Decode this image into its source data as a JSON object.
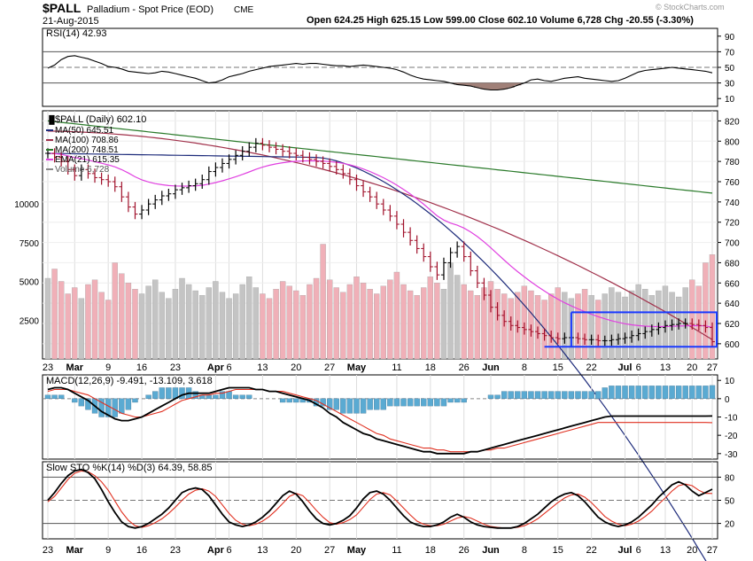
{
  "header": {
    "symbol": "$PALL",
    "name": "Palladium - Spot Price (EOD)",
    "exchange": "CME",
    "date": "21-Aug-2015",
    "quote": "Open 624.25  High 625.15  Low 599.00  Close 602.10  Volume 6,728  Chg -20.55 (-3.30%)",
    "watermark": "© StockCharts.com"
  },
  "colors": {
    "ma50": "#1c2a7a",
    "ma100": "#a0304a",
    "ma200": "#2a7a2a",
    "ema21": "#e040e0",
    "up_bar": "#000000",
    "down_bar": "#a0102a",
    "vol_up": "#c4c4c4",
    "vol_down": "#f0b0b8",
    "rsi_fill": "#a08078",
    "macd_hist": "#5aaad2",
    "support_line": "#1a3aff"
  },
  "chart_data": [
    {
      "type": "line",
      "title": "RSI(14) 42.93",
      "series": [
        {
          "name": "RSI(14)",
          "values": [
            49,
            53,
            60,
            64,
            65,
            63,
            61,
            58,
            55,
            51,
            50,
            48,
            45,
            44,
            43,
            42,
            43,
            45,
            44,
            42,
            40,
            38,
            36,
            33,
            30,
            31,
            34,
            38,
            40,
            42,
            45,
            47,
            49,
            51,
            52,
            53,
            54,
            55,
            54,
            55,
            55,
            54,
            53,
            52,
            52,
            51,
            52,
            53,
            52,
            51,
            50,
            49,
            47,
            44,
            40,
            37,
            35,
            34,
            33,
            32,
            30,
            28,
            27,
            26,
            24,
            22,
            21,
            21,
            22,
            24,
            27,
            30,
            34,
            35,
            33,
            32,
            34,
            36,
            37,
            38,
            36,
            35,
            34,
            33,
            32,
            33,
            36,
            40,
            44,
            46,
            47,
            48,
            49,
            50,
            49,
            48,
            47,
            46,
            45,
            43
          ]
        }
      ],
      "y_ticks": [
        "90",
        "70",
        "50",
        "30",
        "10"
      ],
      "y_tick_values": [
        90,
        70,
        50,
        30,
        10
      ],
      "ylim": [
        0,
        100
      ],
      "overbought": 70,
      "oversold": 30
    },
    {
      "type": "line",
      "title": "$PALL (Daily) 602.10",
      "legend": [
        {
          "label": "MA(50) 645.51",
          "key": "ma50"
        },
        {
          "label": "MA(100) 708.86",
          "key": "ma100"
        },
        {
          "label": "MA(200) 748.51",
          "key": "ma200"
        },
        {
          "label": "EMA(21) 615.35",
          "key": "ema21"
        },
        {
          "label": "Volume 6,728",
          "key": "volume"
        }
      ],
      "y_ticks": [
        "820",
        "800",
        "780",
        "760",
        "740",
        "720",
        "700",
        "680",
        "660",
        "640",
        "620",
        "600"
      ],
      "y_tick_values": [
        820,
        800,
        780,
        760,
        740,
        720,
        700,
        680,
        660,
        640,
        620,
        600
      ],
      "ylim": [
        585,
        830
      ],
      "vol_ticks": [
        "10000",
        "7500",
        "5000",
        "2500"
      ],
      "vol_tick_values": [
        10000,
        7500,
        5000,
        2500
      ],
      "vol_max": 16000,
      "close": [
        788,
        784,
        780,
        772,
        766,
        772,
        768,
        764,
        762,
        760,
        755,
        745,
        735,
        728,
        732,
        738,
        742,
        746,
        748,
        752,
        754,
        756,
        758,
        762,
        770,
        774,
        778,
        782,
        786,
        790,
        794,
        798,
        796,
        794,
        792,
        790,
        788,
        786,
        784,
        782,
        780,
        778,
        775,
        772,
        768,
        762,
        756,
        750,
        745,
        738,
        732,
        726,
        718,
        710,
        702,
        694,
        686,
        676,
        668,
        680,
        690,
        696,
        686,
        672,
        660,
        648,
        636,
        628,
        622,
        618,
        616,
        614,
        612,
        610,
        608,
        606,
        605,
        606,
        606,
        605,
        604,
        604,
        603,
        603,
        604,
        605,
        606,
        608,
        610,
        612,
        614,
        616,
        618,
        619,
        620,
        620,
        619,
        618,
        616,
        602
      ],
      "volume": [
        5200,
        5800,
        5000,
        4200,
        4600,
        3900,
        4800,
        5100,
        4300,
        3800,
        6200,
        5500,
        4900,
        4500,
        4200,
        4700,
        5100,
        4300,
        3900,
        4500,
        5200,
        4800,
        4400,
        4100,
        4600,
        5000,
        4300,
        3900,
        4200,
        4800,
        5300,
        4600,
        4200,
        3900,
        4500,
        5000,
        4700,
        4400,
        4100,
        4800,
        5200,
        7400,
        5100,
        4600,
        4300,
        4800,
        5300,
        4900,
        4500,
        4200,
        4700,
        5100,
        5600,
        4800,
        4400,
        4100,
        4600,
        5300,
        4900,
        4500,
        6200,
        5400,
        4800,
        4400,
        4100,
        4600,
        5000,
        4500,
        4200,
        3900,
        4300,
        4700,
        4400,
        4100,
        3800,
        4200,
        4600,
        4300,
        3900,
        4200,
        4500,
        4100,
        3800,
        4200,
        4600,
        4300,
        4000,
        4400,
        4800,
        4500,
        4100,
        4400,
        4700,
        4300,
        4000,
        4600,
        5100,
        4700,
        6200,
        6728
      ],
      "support_line": 597,
      "resistance_line": 631
    },
    {
      "type": "line",
      "title": "MACD(12,26,9) -9.491, -13.109, 3.618",
      "series": [
        {
          "name": "MACD",
          "values": [
            5,
            6,
            6,
            5,
            3,
            1,
            -1,
            -4,
            -7,
            -9,
            -11,
            -12,
            -12,
            -11,
            -10,
            -8,
            -6,
            -4,
            -2,
            0,
            2,
            3,
            3,
            3,
            3,
            4,
            5,
            6,
            6,
            6,
            6,
            5,
            5,
            4,
            4,
            3,
            2,
            1,
            0,
            -1,
            -3,
            -5,
            -8,
            -10,
            -13,
            -15,
            -17,
            -19,
            -20,
            -22,
            -23,
            -24,
            -25,
            -26,
            -27,
            -28,
            -29,
            -29,
            -30,
            -30,
            -30,
            -30,
            -30,
            -29,
            -29,
            -28,
            -27,
            -26,
            -25,
            -24,
            -23,
            -22,
            -21,
            -20,
            -19,
            -18,
            -17,
            -16,
            -15,
            -14,
            -13,
            -12,
            -11,
            -10,
            -9.5,
            -9.5,
            -9.5,
            -9.5,
            -9.5,
            -9.5,
            -9.5,
            -9.5,
            -9.5,
            -9.5,
            -9.5,
            -9.5,
            -9.5,
            -9.5,
            -9.5,
            -9.491
          ]
        },
        {
          "name": "Signal",
          "values": [
            4,
            5,
            5,
            5,
            4,
            3,
            2,
            0,
            -2,
            -4,
            -6,
            -8,
            -9,
            -10,
            -10,
            -9,
            -8,
            -7,
            -5,
            -3,
            -1,
            0,
            1,
            2,
            2,
            3,
            3,
            4,
            5,
            5,
            5,
            5,
            5,
            4,
            4,
            4,
            3,
            2,
            1,
            0,
            -1,
            -3,
            -5,
            -7,
            -9,
            -11,
            -13,
            -15,
            -17,
            -19,
            -20,
            -22,
            -23,
            -24,
            -25,
            -26,
            -27,
            -27,
            -28,
            -28,
            -29,
            -29,
            -29,
            -29,
            -29,
            -28,
            -28,
            -27,
            -27,
            -26,
            -25,
            -24,
            -23,
            -22,
            -21,
            -20,
            -19,
            -18,
            -17,
            -16,
            -15,
            -14,
            -13,
            -13,
            -13,
            -13,
            -13,
            -13,
            -13,
            -13,
            -13,
            -13,
            -13,
            -13,
            -13,
            -13,
            -13,
            -13,
            -13,
            -13.109
          ]
        }
      ],
      "y_ticks": [
        "10",
        "0",
        "-10",
        "-20",
        "-30"
      ],
      "y_tick_values": [
        10,
        0,
        -10,
        -20,
        -30
      ],
      "ylim": [
        -33,
        13
      ]
    },
    {
      "type": "line",
      "title": "Slow STO %K(14) %D(3) 64.39, 58.85",
      "series": [
        {
          "name": "%K(14)",
          "values": [
            50,
            60,
            72,
            82,
            88,
            90,
            86,
            78,
            64,
            48,
            34,
            22,
            16,
            14,
            16,
            20,
            26,
            32,
            40,
            50,
            60,
            64,
            66,
            64,
            56,
            44,
            32,
            22,
            18,
            16,
            18,
            22,
            28,
            36,
            46,
            56,
            62,
            58,
            48,
            36,
            26,
            20,
            18,
            20,
            24,
            30,
            40,
            52,
            60,
            62,
            58,
            50,
            40,
            30,
            22,
            18,
            16,
            16,
            18,
            22,
            28,
            32,
            28,
            22,
            18,
            16,
            15,
            14,
            14,
            14,
            16,
            20,
            26,
            32,
            40,
            48,
            54,
            58,
            60,
            56,
            48,
            38,
            28,
            22,
            18,
            16,
            18,
            22,
            28,
            36,
            44,
            54,
            62,
            70,
            74,
            70,
            62,
            56,
            60,
            64.39
          ]
        },
        {
          "name": "%D(3)",
          "values": [
            48,
            55,
            66,
            77,
            85,
            88,
            87,
            82,
            74,
            63,
            49,
            35,
            24,
            17,
            15,
            17,
            21,
            26,
            33,
            41,
            50,
            58,
            63,
            65,
            62,
            55,
            44,
            33,
            24,
            19,
            17,
            19,
            23,
            29,
            37,
            46,
            55,
            59,
            56,
            47,
            37,
            28,
            21,
            19,
            21,
            25,
            31,
            41,
            51,
            58,
            60,
            57,
            49,
            40,
            31,
            23,
            19,
            17,
            17,
            19,
            23,
            27,
            29,
            27,
            23,
            19,
            16,
            15,
            14,
            14,
            15,
            17,
            21,
            26,
            33,
            40,
            47,
            53,
            57,
            58,
            54,
            47,
            38,
            29,
            23,
            19,
            17,
            19,
            23,
            29,
            36,
            45,
            53,
            62,
            69,
            71,
            69,
            63,
            59,
            58.85
          ]
        }
      ],
      "y_ticks": [
        "80",
        "50",
        "20"
      ],
      "y_tick_values": [
        80,
        50,
        20
      ],
      "ylim": [
        0,
        100
      ],
      "overbought": 80,
      "oversold": 20
    }
  ],
  "x_axis": {
    "labels": [
      {
        "i": 0,
        "label": "23",
        "bold": false
      },
      {
        "i": 4,
        "label": "Mar",
        "bold": true
      },
      {
        "i": 9,
        "label": "9",
        "bold": false
      },
      {
        "i": 14,
        "label": "16",
        "bold": false
      },
      {
        "i": 19,
        "label": "23",
        "bold": false
      },
      {
        "i": 25,
        "label": "Apr",
        "bold": true
      },
      {
        "i": 27,
        "label": "6",
        "bold": false
      },
      {
        "i": 32,
        "label": "13",
        "bold": false
      },
      {
        "i": 37,
        "label": "20",
        "bold": false
      },
      {
        "i": 42,
        "label": "27",
        "bold": false
      },
      {
        "i": 46,
        "label": "May",
        "bold": true
      },
      {
        "i": 52,
        "label": "11",
        "bold": false
      },
      {
        "i": 57,
        "label": "18",
        "bold": false
      },
      {
        "i": 62,
        "label": "26",
        "bold": false
      },
      {
        "i": 66,
        "label": "Jun",
        "bold": true
      },
      {
        "i": 71,
        "label": "8",
        "bold": false
      },
      {
        "i": 76,
        "label": "15",
        "bold": false
      },
      {
        "i": 81,
        "label": "22",
        "bold": false
      },
      {
        "i": 86,
        "label": "Jul",
        "bold": true
      },
      {
        "i": 88,
        "label": "6",
        "bold": false
      },
      {
        "i": 92,
        "label": "13",
        "bold": false
      },
      {
        "i": 96,
        "label": "20",
        "bold": false
      },
      {
        "i": 99,
        "label": "27",
        "bold": false
      }
    ]
  }
}
